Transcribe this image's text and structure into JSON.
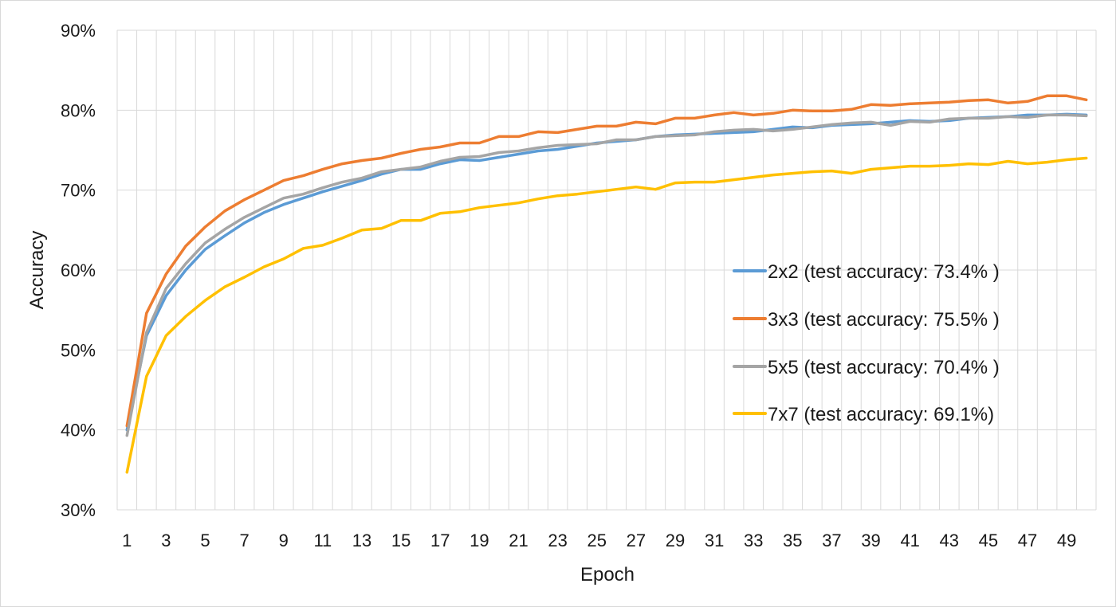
{
  "chart_data": {
    "type": "line",
    "title": "",
    "xlabel": "Epoch",
    "ylabel": "Accuracy",
    "x": [
      1,
      2,
      3,
      4,
      5,
      6,
      7,
      8,
      9,
      10,
      11,
      12,
      13,
      14,
      15,
      16,
      17,
      18,
      19,
      20,
      21,
      22,
      23,
      24,
      25,
      26,
      27,
      28,
      29,
      30,
      31,
      32,
      33,
      34,
      35,
      36,
      37,
      38,
      39,
      40,
      41,
      42,
      43,
      44,
      45,
      46,
      47,
      48,
      49,
      50
    ],
    "x_tick_labels": [
      "1",
      "3",
      "5",
      "7",
      "9",
      "11",
      "13",
      "15",
      "17",
      "19",
      "21",
      "23",
      "25",
      "27",
      "29",
      "31",
      "33",
      "35",
      "37",
      "39",
      "41",
      "43",
      "45",
      "47",
      "49"
    ],
    "y_tick_labels": [
      "30%",
      "40%",
      "50%",
      "60%",
      "70%",
      "80%",
      "90%"
    ],
    "ylim": [
      0.3,
      0.9
    ],
    "grid": true,
    "legend_position": "right",
    "series": [
      {
        "name": "2x2 (test accuracy: 73.4% )",
        "color": "#5b9bd5",
        "values": [
          0.4,
          0.518,
          0.568,
          0.6,
          0.626,
          0.643,
          0.659,
          0.672,
          0.682,
          0.69,
          0.698,
          0.705,
          0.712,
          0.72,
          0.726,
          0.726,
          0.733,
          0.738,
          0.737,
          0.741,
          0.745,
          0.749,
          0.751,
          0.755,
          0.759,
          0.761,
          0.763,
          0.767,
          0.769,
          0.77,
          0.771,
          0.772,
          0.773,
          0.776,
          0.779,
          0.778,
          0.781,
          0.782,
          0.783,
          0.785,
          0.787,
          0.786,
          0.787,
          0.79,
          0.791,
          0.792,
          0.794,
          0.794,
          0.795,
          0.794
        ]
      },
      {
        "name": "3x3 (test accuracy: 75.5% )",
        "color": "#ed7d31",
        "values": [
          0.405,
          0.546,
          0.595,
          0.63,
          0.654,
          0.674,
          0.688,
          0.7,
          0.712,
          0.718,
          0.726,
          0.733,
          0.737,
          0.74,
          0.746,
          0.751,
          0.754,
          0.759,
          0.759,
          0.767,
          0.767,
          0.773,
          0.772,
          0.776,
          0.78,
          0.78,
          0.785,
          0.783,
          0.79,
          0.79,
          0.794,
          0.797,
          0.794,
          0.796,
          0.8,
          0.799,
          0.799,
          0.801,
          0.807,
          0.806,
          0.808,
          0.809,
          0.81,
          0.812,
          0.813,
          0.809,
          0.811,
          0.818,
          0.818,
          0.813
        ]
      },
      {
        "name": "5x5 (test accuracy: 70.4% )",
        "color": "#a5a5a5",
        "values": [
          0.393,
          0.522,
          0.577,
          0.608,
          0.634,
          0.651,
          0.666,
          0.678,
          0.69,
          0.695,
          0.703,
          0.71,
          0.715,
          0.723,
          0.726,
          0.729,
          0.736,
          0.741,
          0.742,
          0.747,
          0.749,
          0.753,
          0.756,
          0.757,
          0.758,
          0.763,
          0.763,
          0.767,
          0.768,
          0.769,
          0.773,
          0.775,
          0.776,
          0.774,
          0.776,
          0.779,
          0.782,
          0.784,
          0.785,
          0.781,
          0.786,
          0.785,
          0.789,
          0.79,
          0.79,
          0.792,
          0.791,
          0.794,
          0.794,
          0.793
        ]
      },
      {
        "name": "7x7 (test accuracy: 69.1%)",
        "color": "#ffc000",
        "values": [
          0.347,
          0.467,
          0.518,
          0.542,
          0.562,
          0.579,
          0.591,
          0.604,
          0.614,
          0.627,
          0.631,
          0.64,
          0.65,
          0.652,
          0.662,
          0.662,
          0.671,
          0.673,
          0.678,
          0.681,
          0.684,
          0.689,
          0.693,
          0.695,
          0.698,
          0.701,
          0.704,
          0.701,
          0.709,
          0.71,
          0.71,
          0.713,
          0.716,
          0.719,
          0.721,
          0.723,
          0.724,
          0.721,
          0.726,
          0.728,
          0.73,
          0.73,
          0.731,
          0.733,
          0.732,
          0.736,
          0.733,
          0.735,
          0.738,
          0.74
        ]
      }
    ]
  }
}
